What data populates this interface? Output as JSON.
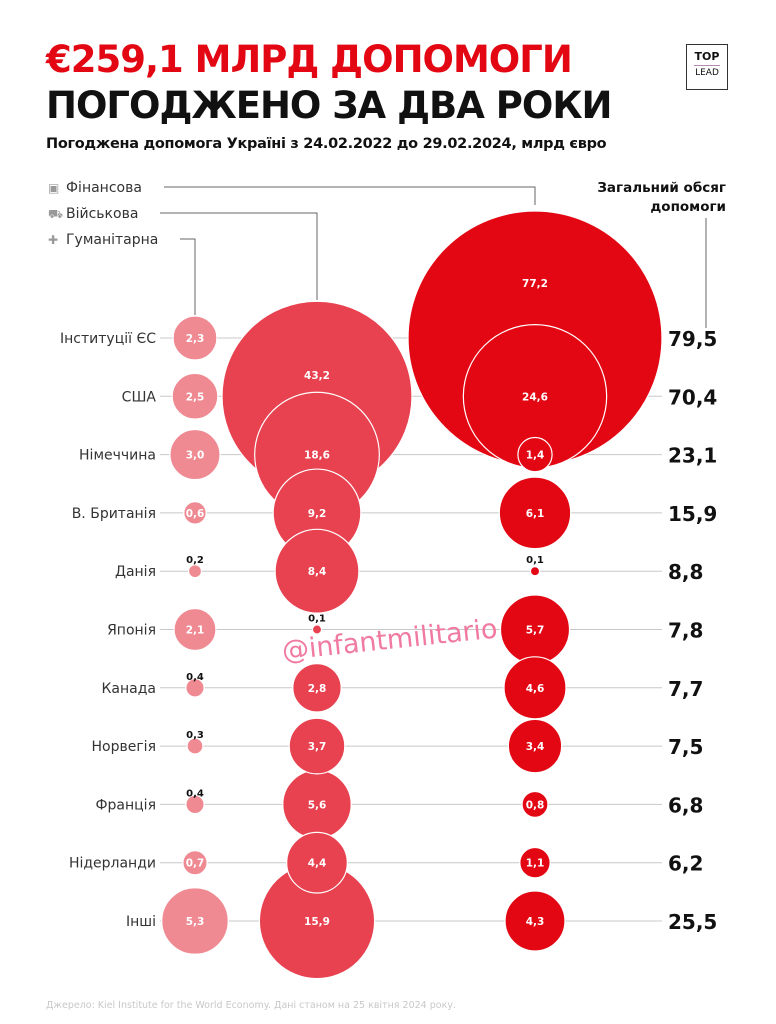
{
  "header": {
    "title_line1": "€259,1 МЛРД ДОПОМОГИ",
    "title_line2": "ПОГОДЖЕНО ЗА ДВА РОКИ",
    "subtitle": "Погоджена допомога Україні з 24.02.2022 до 29.02.2024, млрд євро",
    "logo_top": "TOP",
    "logo_bottom": "LEAD"
  },
  "watermark": "@infantmilitario",
  "source": "Джерело: Kiel Institute for the World Economy. Дані станом на 25 квітня 2024 року.",
  "colors": {
    "financial": "#e30613",
    "military": "#e8414f",
    "humanitarian": "#ef8a93"
  },
  "chart_data": {
    "type": "bubble",
    "title": "Погоджена допомога Україні з 24.02.2022 до 29.02.2024, млрд євро",
    "legend": [
      {
        "key": "financial",
        "label": "Фінансова",
        "icon": "banknote-icon"
      },
      {
        "key": "military",
        "label": "Військова",
        "icon": "military-vehicle-icon"
      },
      {
        "key": "humanitarian",
        "label": "Гуманітарна",
        "icon": "cross-icon"
      }
    ],
    "total_label": "Загальний обсяг допомоги",
    "categories": [
      "Інституції ЄС",
      "США",
      "Німеччина",
      "В. Британія",
      "Данія",
      "Японія",
      "Канада",
      "Норвегія",
      "Франція",
      "Нідерланди",
      "Інші"
    ],
    "series": [
      {
        "name": "Гуманітарна",
        "key": "humanitarian",
        "values": [
          2.3,
          2.5,
          3.0,
          0.6,
          0.2,
          2.1,
          0.4,
          0.3,
          0.4,
          0.7,
          5.3
        ]
      },
      {
        "name": "Військова",
        "key": "military",
        "values": [
          null,
          43.2,
          18.6,
          9.2,
          8.4,
          0.1,
          2.8,
          3.7,
          5.6,
          4.4,
          15.9
        ]
      },
      {
        "name": "Фінансова",
        "key": "financial",
        "values": [
          77.2,
          24.6,
          1.4,
          6.1,
          0.1,
          5.7,
          4.6,
          3.4,
          0.8,
          1.1,
          4.3
        ]
      }
    ],
    "totals": [
      79.5,
      70.4,
      23.1,
      15.9,
      8.8,
      7.8,
      7.7,
      7.5,
      6.8,
      6.2,
      25.5
    ]
  }
}
